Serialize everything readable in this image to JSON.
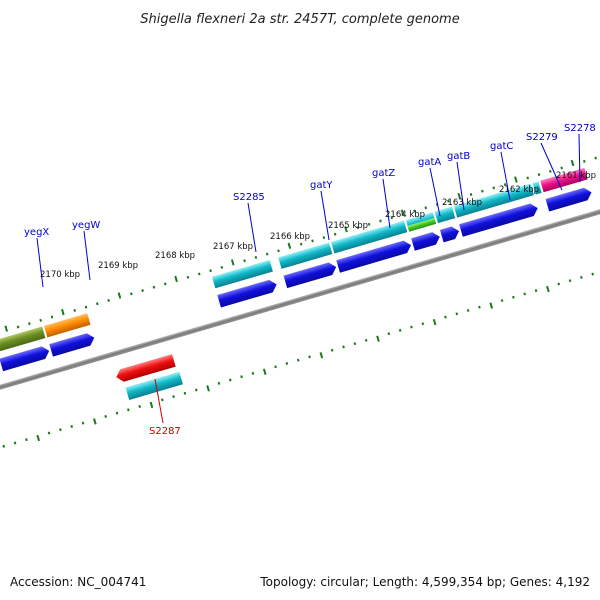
{
  "title": "Shigella flexneri 2a str. 2457T, complete genome",
  "footer": {
    "accession": "Accession: NC_004741",
    "summary": "Topology: circular; Length: 4,599,354 bp; Genes: 4,192"
  },
  "colors": {
    "label_forward": "#0000cc",
    "label_reverse": "#cc0000",
    "tick": "#1a7a1a",
    "backbone": "#888888",
    "cds_forward": "#1010dd",
    "cds_teal": "#10b8c8",
    "cds_olive": "#6b8e23",
    "cds_orange": "#ff8c00",
    "cds_green": "#44cc22",
    "cds_magenta": "#ee1188",
    "cds_red": "#ee1010"
  },
  "kbp_labels": [
    {
      "kb": 2170,
      "text": "2170 kbp"
    },
    {
      "kb": 2169,
      "text": "2169 kbp"
    },
    {
      "kb": 2168,
      "text": "2168 kbp"
    },
    {
      "kb": 2167,
      "text": "2167 kbp"
    },
    {
      "kb": 2166,
      "text": "2166 kbp"
    },
    {
      "kb": 2165,
      "text": "2165 kbp"
    },
    {
      "kb": 2164,
      "text": "2164 kbp"
    },
    {
      "kb": 2163,
      "text": "2163 kbp"
    },
    {
      "kb": 2162,
      "text": "2162 kbp"
    },
    {
      "kb": 2161,
      "text": "2161 kbp"
    }
  ],
  "gene_labels": [
    {
      "name": "yegX",
      "strand": "forward"
    },
    {
      "name": "yegW",
      "strand": "forward"
    },
    {
      "name": "S2285",
      "strand": "forward"
    },
    {
      "name": "gatY",
      "strand": "forward"
    },
    {
      "name": "gatZ",
      "strand": "forward"
    },
    {
      "name": "gatA",
      "strand": "forward"
    },
    {
      "name": "gatB",
      "strand": "forward"
    },
    {
      "name": "gatC",
      "strand": "forward"
    },
    {
      "name": "S2279",
      "strand": "forward"
    },
    {
      "name": "S2278",
      "strand": "forward"
    },
    {
      "name": "S2287",
      "strand": "reverse"
    }
  ]
}
